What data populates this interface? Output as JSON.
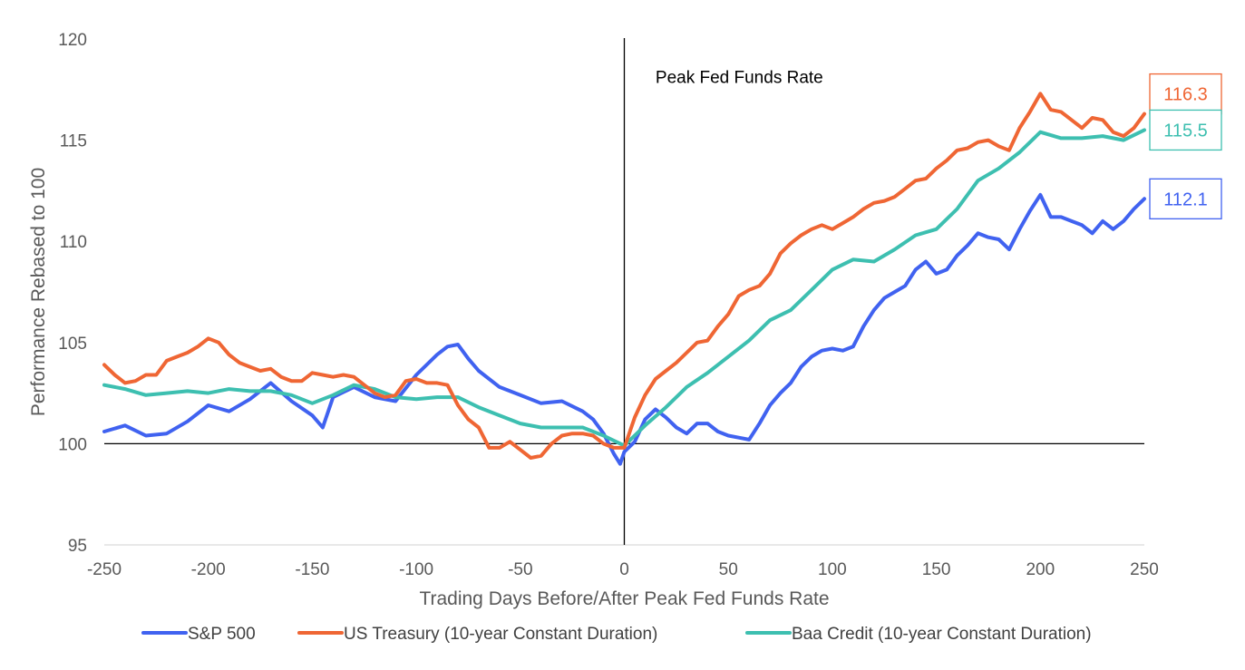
{
  "chart_data": {
    "type": "line",
    "title": "",
    "xlabel": "Trading Days Before/After Peak Fed Funds Rate",
    "ylabel": "Performance Rebased to 100",
    "xlim": [
      -250,
      250
    ],
    "ylim": [
      95,
      120
    ],
    "x_ticks": [
      "-250",
      "-200",
      "-150",
      "-100",
      "-50",
      "0",
      "50",
      "100",
      "150",
      "200",
      "250"
    ],
    "y_ticks": [
      "95",
      "100",
      "105",
      "110",
      "115",
      "120"
    ],
    "grid": false,
    "legend_position": "bottom",
    "reference_lines": {
      "vertical_x": 0,
      "horizontal_y": 100
    },
    "annotations": [
      {
        "text": "Peak Fed Funds Rate",
        "x": 15,
        "y": 118.1
      }
    ],
    "end_labels": [
      {
        "series": "US Treasury (10-year Constant Duration)",
        "text": "116.3",
        "y": 116.3
      },
      {
        "series": "Baa Credit (10-year Constant Duration)",
        "text": "115.5",
        "y": 115.5
      },
      {
        "series": "S&P 500",
        "text": "112.1",
        "y": 112.1
      }
    ],
    "series": [
      {
        "name": "S&P 500",
        "color": "#4062f0",
        "points": [
          [
            -250,
            100.6
          ],
          [
            -240,
            100.9
          ],
          [
            -230,
            100.4
          ],
          [
            -220,
            100.5
          ],
          [
            -210,
            101.1
          ],
          [
            -200,
            101.9
          ],
          [
            -190,
            101.6
          ],
          [
            -180,
            102.2
          ],
          [
            -170,
            103.0
          ],
          [
            -160,
            102.1
          ],
          [
            -150,
            101.4
          ],
          [
            -145,
            100.8
          ],
          [
            -140,
            102.3
          ],
          [
            -130,
            102.8
          ],
          [
            -120,
            102.3
          ],
          [
            -110,
            102.1
          ],
          [
            -100,
            103.4
          ],
          [
            -90,
            104.4
          ],
          [
            -85,
            104.8
          ],
          [
            -80,
            104.9
          ],
          [
            -75,
            104.2
          ],
          [
            -70,
            103.6
          ],
          [
            -60,
            102.8
          ],
          [
            -50,
            102.4
          ],
          [
            -40,
            102.0
          ],
          [
            -30,
            102.1
          ],
          [
            -20,
            101.6
          ],
          [
            -15,
            101.2
          ],
          [
            -10,
            100.5
          ],
          [
            -5,
            99.5
          ],
          [
            -2,
            99.0
          ],
          [
            0,
            99.6
          ],
          [
            5,
            100.1
          ],
          [
            10,
            101.2
          ],
          [
            15,
            101.7
          ],
          [
            20,
            101.3
          ],
          [
            25,
            100.8
          ],
          [
            30,
            100.5
          ],
          [
            35,
            101.0
          ],
          [
            40,
            101.0
          ],
          [
            45,
            100.6
          ],
          [
            50,
            100.4
          ],
          [
            55,
            100.3
          ],
          [
            60,
            100.2
          ],
          [
            65,
            101.0
          ],
          [
            70,
            101.9
          ],
          [
            75,
            102.5
          ],
          [
            80,
            103.0
          ],
          [
            85,
            103.8
          ],
          [
            90,
            104.3
          ],
          [
            95,
            104.6
          ],
          [
            100,
            104.7
          ],
          [
            105,
            104.6
          ],
          [
            110,
            104.8
          ],
          [
            115,
            105.8
          ],
          [
            120,
            106.6
          ],
          [
            125,
            107.2
          ],
          [
            130,
            107.5
          ],
          [
            135,
            107.8
          ],
          [
            140,
            108.6
          ],
          [
            145,
            109.0
          ],
          [
            150,
            108.4
          ],
          [
            155,
            108.6
          ],
          [
            160,
            109.3
          ],
          [
            165,
            109.8
          ],
          [
            170,
            110.4
          ],
          [
            175,
            110.2
          ],
          [
            180,
            110.1
          ],
          [
            185,
            109.6
          ],
          [
            190,
            110.6
          ],
          [
            195,
            111.5
          ],
          [
            200,
            112.3
          ],
          [
            205,
            111.2
          ],
          [
            210,
            111.2
          ],
          [
            215,
            111.0
          ],
          [
            220,
            110.8
          ],
          [
            225,
            110.4
          ],
          [
            230,
            111.0
          ],
          [
            235,
            110.6
          ],
          [
            240,
            111.0
          ],
          [
            245,
            111.6
          ],
          [
            250,
            112.1
          ]
        ]
      },
      {
        "name": "US Treasury (10-year Constant Duration)",
        "color": "#ef6634",
        "points": [
          [
            -250,
            103.9
          ],
          [
            -245,
            103.4
          ],
          [
            -240,
            103.0
          ],
          [
            -235,
            103.1
          ],
          [
            -230,
            103.4
          ],
          [
            -225,
            103.4
          ],
          [
            -220,
            104.1
          ],
          [
            -215,
            104.3
          ],
          [
            -210,
            104.5
          ],
          [
            -205,
            104.8
          ],
          [
            -200,
            105.2
          ],
          [
            -195,
            105.0
          ],
          [
            -190,
            104.4
          ],
          [
            -185,
            104.0
          ],
          [
            -180,
            103.8
          ],
          [
            -175,
            103.6
          ],
          [
            -170,
            103.7
          ],
          [
            -165,
            103.3
          ],
          [
            -160,
            103.1
          ],
          [
            -155,
            103.1
          ],
          [
            -150,
            103.5
          ],
          [
            -145,
            103.4
          ],
          [
            -140,
            103.3
          ],
          [
            -135,
            103.4
          ],
          [
            -130,
            103.3
          ],
          [
            -125,
            102.9
          ],
          [
            -120,
            102.5
          ],
          [
            -115,
            102.3
          ],
          [
            -110,
            102.4
          ],
          [
            -105,
            103.1
          ],
          [
            -100,
            103.2
          ],
          [
            -95,
            103.0
          ],
          [
            -90,
            103.0
          ],
          [
            -85,
            102.9
          ],
          [
            -80,
            101.9
          ],
          [
            -75,
            101.2
          ],
          [
            -70,
            100.8
          ],
          [
            -65,
            99.8
          ],
          [
            -60,
            99.8
          ],
          [
            -55,
            100.1
          ],
          [
            -50,
            99.7
          ],
          [
            -45,
            99.3
          ],
          [
            -40,
            99.4
          ],
          [
            -35,
            100.0
          ],
          [
            -30,
            100.4
          ],
          [
            -25,
            100.5
          ],
          [
            -20,
            100.5
          ],
          [
            -15,
            100.4
          ],
          [
            -10,
            100.0
          ],
          [
            -5,
            99.8
          ],
          [
            0,
            99.8
          ],
          [
            5,
            101.3
          ],
          [
            10,
            102.4
          ],
          [
            15,
            103.2
          ],
          [
            20,
            103.6
          ],
          [
            25,
            104.0
          ],
          [
            30,
            104.5
          ],
          [
            35,
            105.0
          ],
          [
            40,
            105.1
          ],
          [
            45,
            105.8
          ],
          [
            50,
            106.4
          ],
          [
            55,
            107.3
          ],
          [
            60,
            107.6
          ],
          [
            65,
            107.8
          ],
          [
            70,
            108.4
          ],
          [
            75,
            109.4
          ],
          [
            80,
            109.9
          ],
          [
            85,
            110.3
          ],
          [
            90,
            110.6
          ],
          [
            95,
            110.8
          ],
          [
            100,
            110.6
          ],
          [
            105,
            110.9
          ],
          [
            110,
            111.2
          ],
          [
            115,
            111.6
          ],
          [
            120,
            111.9
          ],
          [
            125,
            112.0
          ],
          [
            130,
            112.2
          ],
          [
            135,
            112.6
          ],
          [
            140,
            113.0
          ],
          [
            145,
            113.1
          ],
          [
            150,
            113.6
          ],
          [
            155,
            114.0
          ],
          [
            160,
            114.5
          ],
          [
            165,
            114.6
          ],
          [
            170,
            114.9
          ],
          [
            175,
            115.0
          ],
          [
            180,
            114.7
          ],
          [
            185,
            114.5
          ],
          [
            190,
            115.6
          ],
          [
            195,
            116.4
          ],
          [
            200,
            117.3
          ],
          [
            205,
            116.5
          ],
          [
            210,
            116.4
          ],
          [
            215,
            116.0
          ],
          [
            220,
            115.6
          ],
          [
            225,
            116.1
          ],
          [
            230,
            116.0
          ],
          [
            235,
            115.4
          ],
          [
            240,
            115.2
          ],
          [
            245,
            115.6
          ],
          [
            250,
            116.3
          ]
        ]
      },
      {
        "name": "Baa Credit (10-year Constant Duration)",
        "color": "#3dbfb0",
        "points": [
          [
            -250,
            102.9
          ],
          [
            -240,
            102.7
          ],
          [
            -230,
            102.4
          ],
          [
            -220,
            102.5
          ],
          [
            -210,
            102.6
          ],
          [
            -200,
            102.5
          ],
          [
            -190,
            102.7
          ],
          [
            -180,
            102.6
          ],
          [
            -170,
            102.6
          ],
          [
            -160,
            102.4
          ],
          [
            -150,
            102.0
          ],
          [
            -140,
            102.4
          ],
          [
            -130,
            102.9
          ],
          [
            -120,
            102.7
          ],
          [
            -110,
            102.3
          ],
          [
            -100,
            102.2
          ],
          [
            -90,
            102.3
          ],
          [
            -80,
            102.3
          ],
          [
            -70,
            101.8
          ],
          [
            -60,
            101.4
          ],
          [
            -50,
            101.0
          ],
          [
            -40,
            100.8
          ],
          [
            -30,
            100.8
          ],
          [
            -20,
            100.8
          ],
          [
            -10,
            100.4
          ],
          [
            0,
            99.9
          ],
          [
            10,
            100.9
          ],
          [
            20,
            101.8
          ],
          [
            30,
            102.8
          ],
          [
            40,
            103.5
          ],
          [
            50,
            104.3
          ],
          [
            60,
            105.1
          ],
          [
            70,
            106.1
          ],
          [
            80,
            106.6
          ],
          [
            90,
            107.6
          ],
          [
            100,
            108.6
          ],
          [
            110,
            109.1
          ],
          [
            120,
            109.0
          ],
          [
            130,
            109.6
          ],
          [
            140,
            110.3
          ],
          [
            150,
            110.6
          ],
          [
            160,
            111.6
          ],
          [
            170,
            113.0
          ],
          [
            180,
            113.6
          ],
          [
            190,
            114.4
          ],
          [
            200,
            115.4
          ],
          [
            210,
            115.1
          ],
          [
            220,
            115.1
          ],
          [
            230,
            115.2
          ],
          [
            240,
            115.0
          ],
          [
            250,
            115.5
          ]
        ]
      }
    ]
  }
}
